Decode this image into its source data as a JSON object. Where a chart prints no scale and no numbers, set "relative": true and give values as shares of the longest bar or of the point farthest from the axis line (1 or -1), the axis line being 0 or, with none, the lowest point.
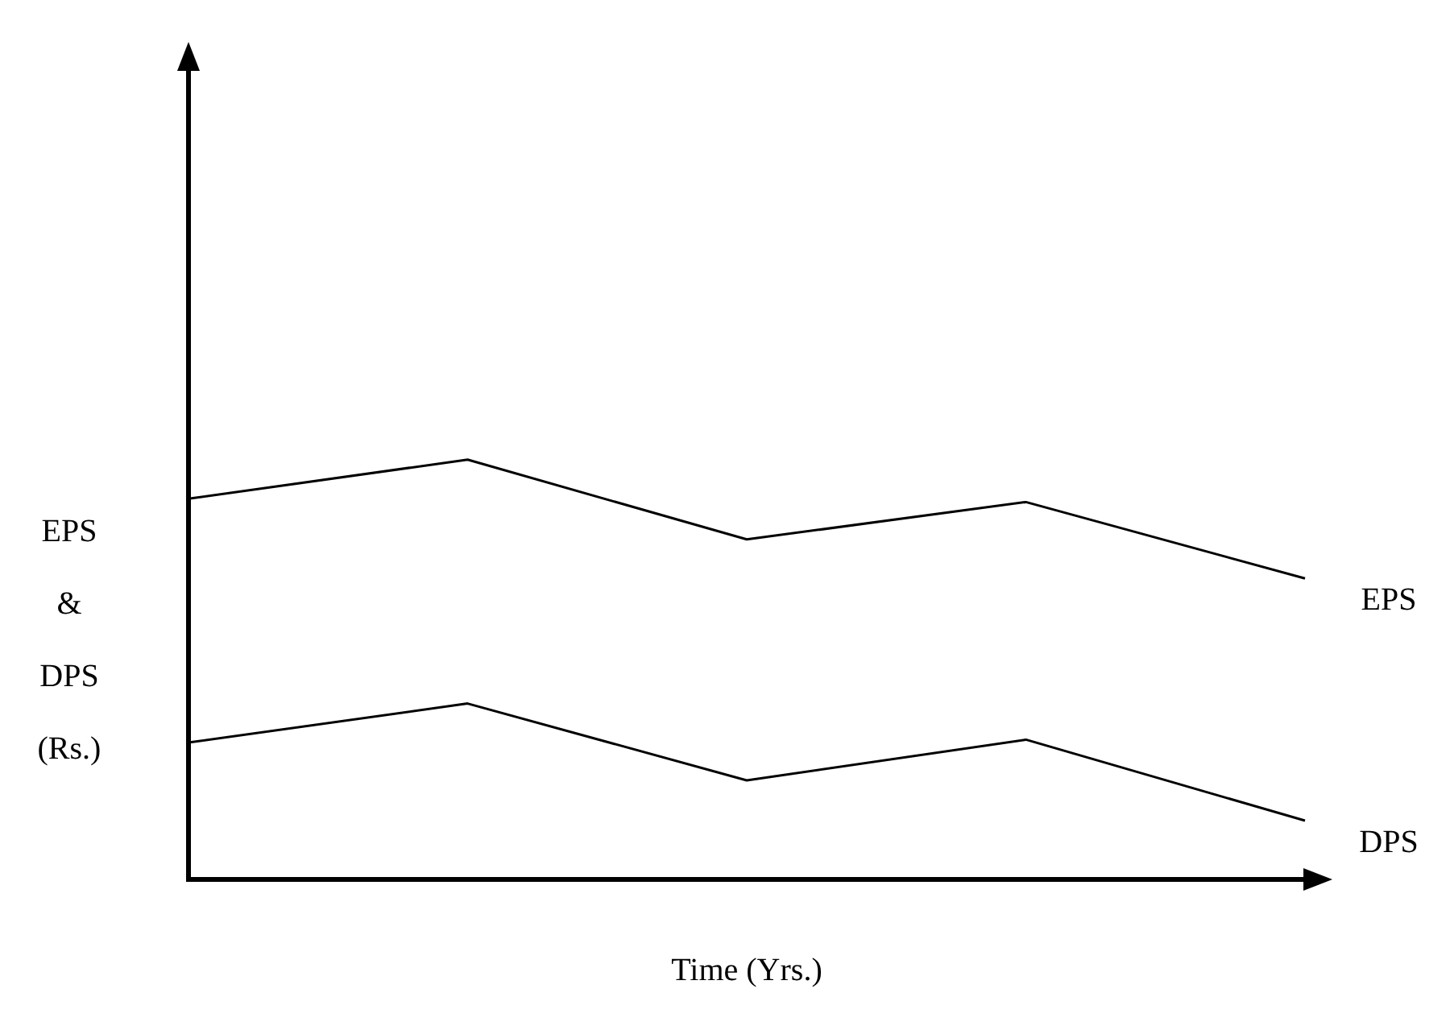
{
  "chart_data": {
    "type": "line",
    "relative": true,
    "xlabel": "Time (Yrs.)",
    "ylabel": "EPS\n&\nDPS\n(Rs.)",
    "categories": [
      null,
      null,
      null,
      null,
      null
    ],
    "series": [
      {
        "name": "EPS",
        "color": "#000000",
        "values": [
          0.907,
          1,
          0.81,
          0.899,
          0.717
        ]
      },
      {
        "name": "DPS",
        "color": "#000000",
        "values": [
          0.326,
          0.419,
          0.236,
          0.333,
          0.14
        ]
      }
    ],
    "grid": false,
    "legend": false,
    "marker": "none",
    "line_style": "solid"
  }
}
